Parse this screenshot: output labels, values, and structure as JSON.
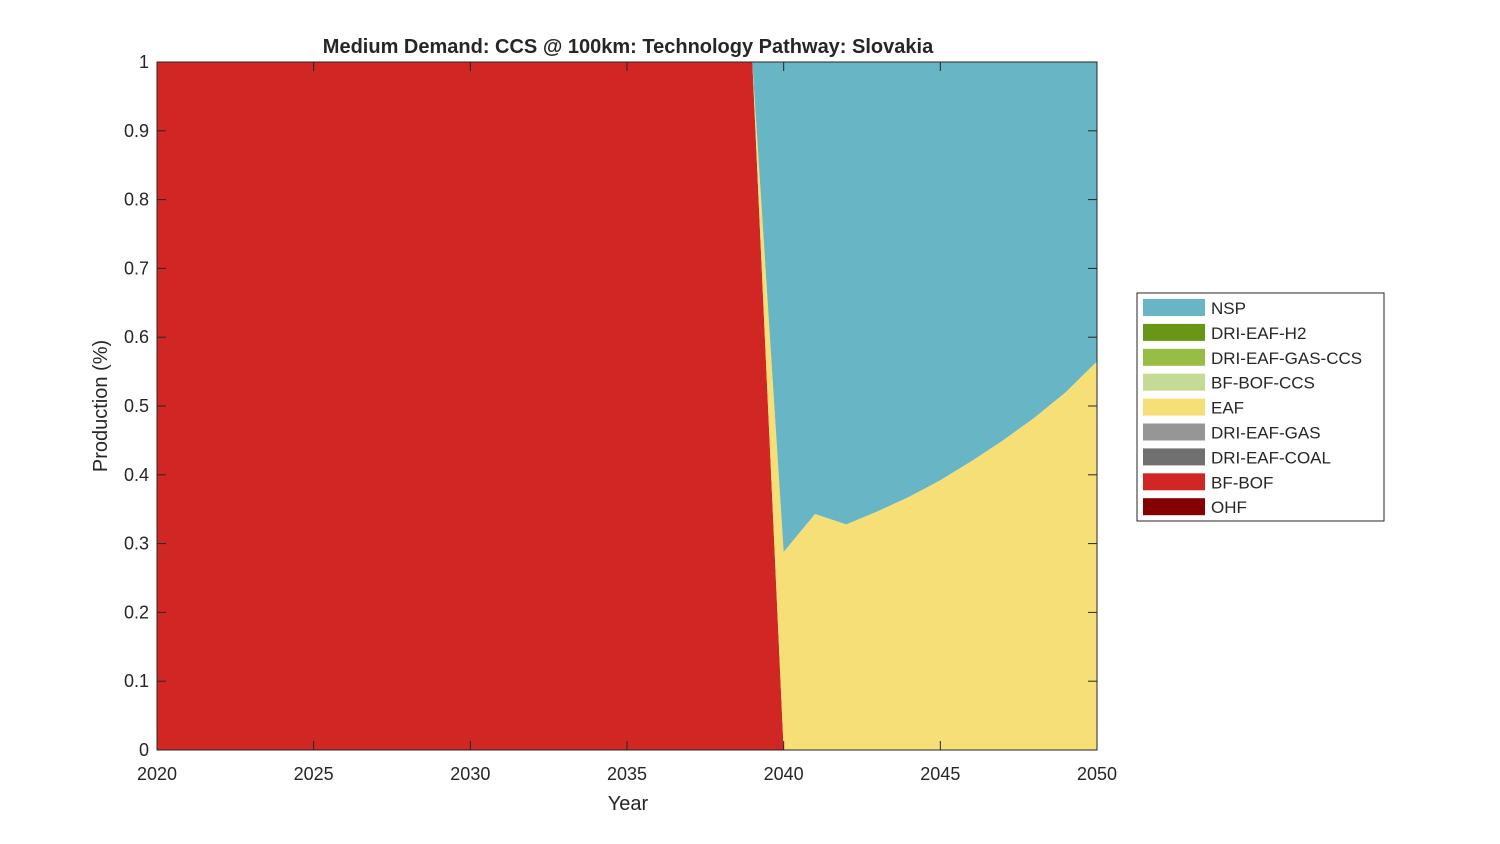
{
  "chart_data": {
    "type": "area",
    "stacked": true,
    "title": "Medium Demand: CCS @ 100km: Technology Pathway: Slovakia",
    "xlabel": "Year",
    "ylabel": "Production (%)",
    "xlim": [
      2020,
      2050
    ],
    "ylim": [
      0,
      1
    ],
    "xticks": [
      2020,
      2025,
      2030,
      2035,
      2040,
      2045,
      2050
    ],
    "yticks": [
      0,
      0.1,
      0.2,
      0.3,
      0.4,
      0.5,
      0.6,
      0.7,
      0.8,
      0.9,
      1
    ],
    "grid": false,
    "legend_placement": "right",
    "x": [
      2020,
      2021,
      2022,
      2023,
      2024,
      2025,
      2026,
      2027,
      2028,
      2029,
      2030,
      2031,
      2032,
      2033,
      2034,
      2035,
      2036,
      2037,
      2038,
      2039,
      2040,
      2041,
      2042,
      2043,
      2044,
      2045,
      2046,
      2047,
      2048,
      2049,
      2050
    ],
    "series": [
      {
        "name": "OHF",
        "color": "#850000",
        "values": [
          0,
          0,
          0,
          0,
          0,
          0,
          0,
          0,
          0,
          0,
          0,
          0,
          0,
          0,
          0,
          0,
          0,
          0,
          0,
          0,
          0,
          0,
          0,
          0,
          0,
          0,
          0,
          0,
          0,
          0,
          0
        ]
      },
      {
        "name": "BF-BOF",
        "color": "#d02724",
        "values": [
          1,
          1,
          1,
          1,
          1,
          1,
          1,
          1,
          1,
          1,
          1,
          1,
          1,
          1,
          1,
          1,
          1,
          1,
          1,
          1,
          0,
          0,
          0,
          0,
          0,
          0,
          0,
          0,
          0,
          0,
          0
        ]
      },
      {
        "name": "DRI-EAF-COAL",
        "color": "#707070",
        "values": [
          0,
          0,
          0,
          0,
          0,
          0,
          0,
          0,
          0,
          0,
          0,
          0,
          0,
          0,
          0,
          0,
          0,
          0,
          0,
          0,
          0,
          0,
          0,
          0,
          0,
          0,
          0,
          0,
          0,
          0,
          0
        ]
      },
      {
        "name": "DRI-EAF-GAS",
        "color": "#969696",
        "values": [
          0,
          0,
          0,
          0,
          0,
          0,
          0,
          0,
          0,
          0,
          0,
          0,
          0,
          0,
          0,
          0,
          0,
          0,
          0,
          0,
          0,
          0,
          0,
          0,
          0,
          0,
          0,
          0,
          0,
          0,
          0
        ]
      },
      {
        "name": "EAF",
        "color": "#f7df77",
        "values": [
          0,
          0,
          0,
          0,
          0,
          0,
          0,
          0,
          0,
          0,
          0,
          0,
          0,
          0,
          0,
          0,
          0,
          0,
          0,
          0,
          0.288,
          0.343,
          0.328,
          0.347,
          0.368,
          0.392,
          0.42,
          0.45,
          0.483,
          0.52,
          0.565
        ]
      },
      {
        "name": "BF-BOF-CCS",
        "color": "#c5db95",
        "values": [
          0,
          0,
          0,
          0,
          0,
          0,
          0,
          0,
          0,
          0,
          0,
          0,
          0,
          0,
          0,
          0,
          0,
          0,
          0,
          0,
          0,
          0,
          0,
          0,
          0,
          0,
          0,
          0,
          0,
          0,
          0
        ]
      },
      {
        "name": "DRI-EAF-GAS-CCS",
        "color": "#97bd46",
        "values": [
          0,
          0,
          0,
          0,
          0,
          0,
          0,
          0,
          0,
          0,
          0,
          0,
          0,
          0,
          0,
          0,
          0,
          0,
          0,
          0,
          0,
          0,
          0,
          0,
          0,
          0,
          0,
          0,
          0,
          0,
          0
        ]
      },
      {
        "name": "DRI-EAF-H2",
        "color": "#6a9615",
        "values": [
          0,
          0,
          0,
          0,
          0,
          0,
          0,
          0,
          0,
          0,
          0,
          0,
          0,
          0,
          0,
          0,
          0,
          0,
          0,
          0,
          0,
          0,
          0,
          0,
          0,
          0,
          0,
          0,
          0,
          0,
          0
        ]
      },
      {
        "name": "NSP",
        "color": "#67b5c5",
        "values": [
          0,
          0,
          0,
          0,
          0,
          0,
          0,
          0,
          0,
          0,
          0,
          0,
          0,
          0,
          0,
          0,
          0,
          0,
          0,
          0,
          0.712,
          0.657,
          0.672,
          0.653,
          0.632,
          0.608,
          0.58,
          0.55,
          0.517,
          0.48,
          0.435
        ]
      }
    ],
    "legend_order": [
      "NSP",
      "DRI-EAF-H2",
      "DRI-EAF-GAS-CCS",
      "BF-BOF-CCS",
      "EAF",
      "DRI-EAF-GAS",
      "DRI-EAF-COAL",
      "BF-BOF",
      "OHF"
    ]
  }
}
